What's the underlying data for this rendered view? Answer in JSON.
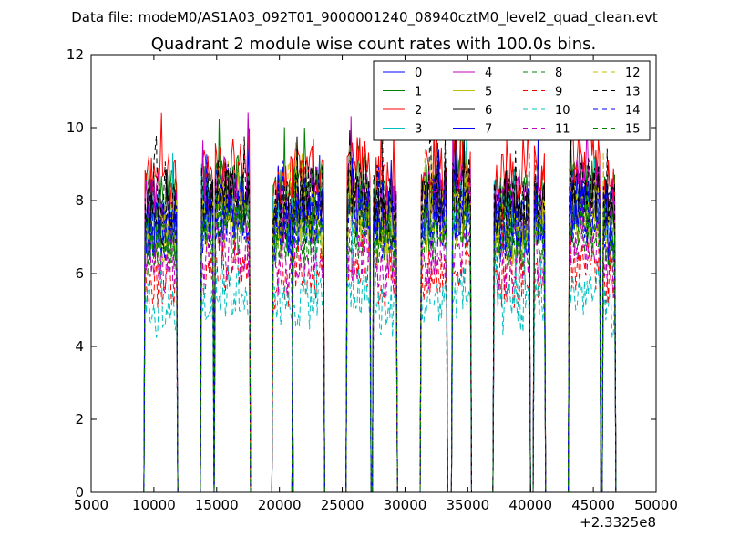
{
  "header": {
    "data_file": "Data file: modeM0/AS1A03_092T01_9000001240_08940cztM0_level2_quad_clean.evt"
  },
  "chart_data": {
    "type": "line",
    "title": "Quadrant 2 module wise count rates with 100.0s bins.",
    "xlabel": "",
    "ylabel": "",
    "x_offset_label": "+2.3325e8",
    "xlim": [
      5000,
      50000
    ],
    "ylim": [
      0,
      12
    ],
    "xticks": [
      5000,
      10000,
      15000,
      20000,
      25000,
      30000,
      35000,
      40000,
      45000,
      50000
    ],
    "yticks": [
      0,
      2,
      4,
      6,
      8,
      10,
      12
    ],
    "grid": false,
    "legend_placement": "top-right",
    "legend_columns": 4,
    "segments": [
      [
        9300,
        11800
      ],
      [
        13800,
        14700
      ],
      [
        14900,
        17600
      ],
      [
        19500,
        21000
      ],
      [
        21100,
        23500
      ],
      [
        25400,
        27200
      ],
      [
        27500,
        29300
      ],
      [
        31300,
        33300
      ],
      [
        33800,
        35200
      ],
      [
        37100,
        39900
      ],
      [
        40300,
        41100
      ],
      [
        43100,
        45500
      ],
      [
        45800,
        46700
      ]
    ],
    "series": [
      {
        "name": "0",
        "color": "#0000ff",
        "dash": "solid",
        "mean": 7.6
      },
      {
        "name": "1",
        "color": "#008000",
        "dash": "solid",
        "mean": 8.1
      },
      {
        "name": "2",
        "color": "#ff0000",
        "dash": "solid",
        "mean": 8.5
      },
      {
        "name": "3",
        "color": "#00bfbf",
        "dash": "solid",
        "mean": 7.4
      },
      {
        "name": "4",
        "color": "#bf00bf",
        "dash": "solid",
        "mean": 7.9
      },
      {
        "name": "5",
        "color": "#bfbf00",
        "dash": "solid",
        "mean": 7.0
      },
      {
        "name": "6",
        "color": "#000000",
        "dash": "solid",
        "mean": 7.5
      },
      {
        "name": "7",
        "color": "#0000ff",
        "dash": "solid",
        "mean": 7.2
      },
      {
        "name": "8",
        "color": "#008000",
        "dash": "dashed",
        "mean": 6.7
      },
      {
        "name": "9",
        "color": "#ff0000",
        "dash": "dashed",
        "mean": 5.8
      },
      {
        "name": "10",
        "color": "#00bfbf",
        "dash": "dashed",
        "mean": 5.0
      },
      {
        "name": "11",
        "color": "#bf00bf",
        "dash": "dashed",
        "mean": 6.1
      },
      {
        "name": "12",
        "color": "#bfbf00",
        "dash": "dashed",
        "mean": 7.3
      },
      {
        "name": "13",
        "color": "#000000",
        "dash": "dashed",
        "mean": 7.9
      },
      {
        "name": "14",
        "color": "#0000ff",
        "dash": "dashed",
        "mean": 7.1
      },
      {
        "name": "15",
        "color": "#008000",
        "dash": "dashed",
        "mean": 6.9
      }
    ]
  }
}
